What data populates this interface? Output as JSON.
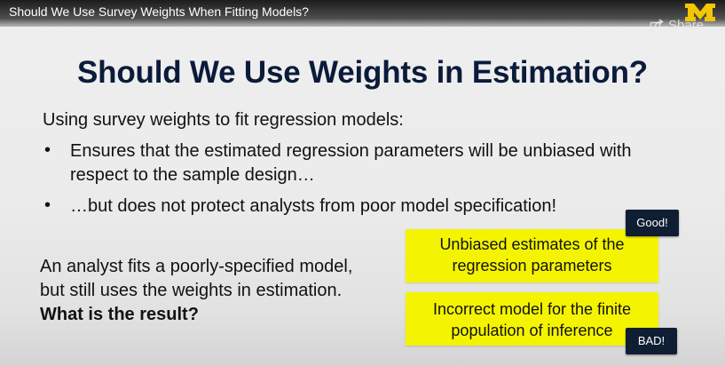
{
  "video": {
    "title": "Should We Use Survey Weights When Fitting Models?",
    "share_label": "Share"
  },
  "icons": {
    "share": "share-icon",
    "logo": "university-of-michigan-block-m-logo"
  },
  "colors": {
    "title": "#0b1b3a",
    "highlight_box": "#f5f400",
    "badge_bg": "#0f1e33",
    "logo_yellow": "#f2c600"
  },
  "slide": {
    "title": "Should We Use Weights in Estimation?",
    "intro": "Using survey weights to fit regression models:",
    "bullets": [
      {
        "line1": "Ensures that the estimated regression parameters will be unbiased with",
        "line2": "respect to the sample design…"
      },
      {
        "line1": "…but does not protect analysts from poor model specification!"
      }
    ],
    "scenario": {
      "line1": "An analyst fits a poorly-specified model,",
      "line2": "but still uses the weights in estimation.",
      "question": "What is the result?"
    },
    "outcomes": [
      {
        "badge": "Good!",
        "line1": "Unbiased estimates of the",
        "line2": "regression parameters"
      },
      {
        "badge": "BAD!",
        "line1": "Incorrect model for the finite",
        "line2": "population of inference"
      }
    ]
  }
}
